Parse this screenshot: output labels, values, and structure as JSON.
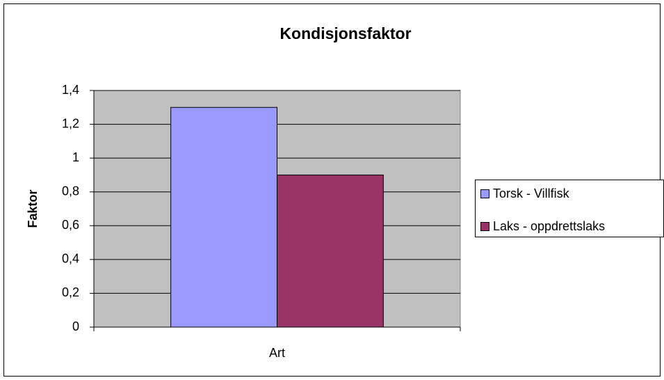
{
  "chart_data": {
    "type": "bar",
    "title": "Kondisjonsfaktor",
    "y_label": "Faktor",
    "categories": [
      "Art"
    ],
    "series": [
      {
        "name": "Torsk - Villfisk",
        "color": "#9999ff",
        "values": [
          1.3
        ]
      },
      {
        "name": "Laks - oppdrettslaks",
        "color": "#993366",
        "values": [
          0.9
        ]
      }
    ],
    "ylim": [
      0,
      1.4
    ],
    "yticks": [
      0,
      {
        "value": 0.2,
        "label": "0,2"
      },
      {
        "value": 0.4,
        "label": "0,4"
      },
      {
        "value": 0.6,
        "label": "0,6"
      },
      {
        "value": 0.8,
        "label": "0,8"
      },
      1,
      {
        "value": 1.2,
        "label": "1,2"
      },
      {
        "value": 1.4,
        "label": "1,4"
      }
    ],
    "grid": true,
    "legend": "right"
  }
}
